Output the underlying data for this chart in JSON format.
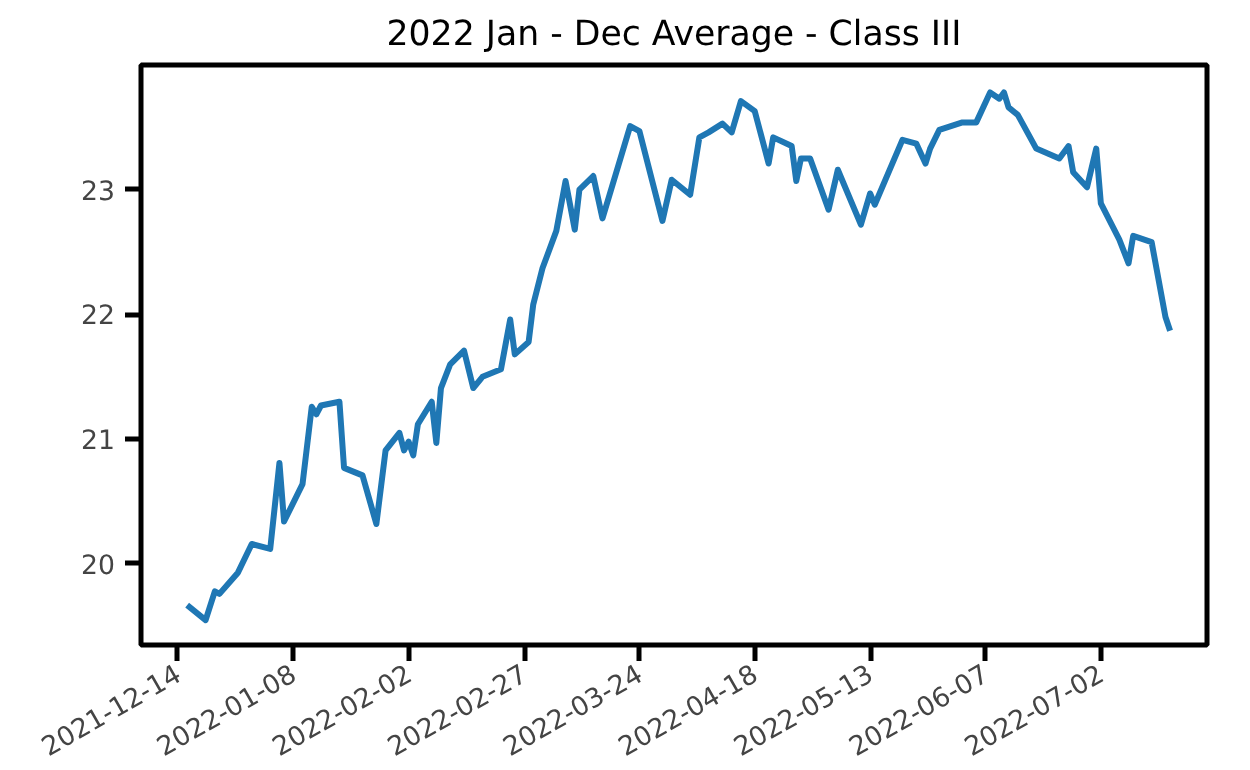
{
  "chart_data": {
    "type": "line",
    "title": "2022 Jan - Dec Average - Class III",
    "grid": false,
    "xlim": [
      "2021-12-06",
      "2022-07-25"
    ],
    "ylim": [
      19.35,
      24.0
    ],
    "xticks": [
      "2021-12-14",
      "2022-01-08",
      "2022-02-02",
      "2022-02-27",
      "2022-03-24",
      "2022-04-18",
      "2022-05-13",
      "2022-06-07",
      "2022-07-02"
    ],
    "yticks": [
      20,
      21,
      22,
      23
    ],
    "x": [
      "2021-12-16",
      "2021-12-20",
      "2021-12-22",
      "2021-12-23",
      "2021-12-27",
      "2021-12-30",
      "2022-01-03",
      "2022-01-05",
      "2022-01-06",
      "2022-01-10",
      "2022-01-12",
      "2022-01-13",
      "2022-01-14",
      "2022-01-18",
      "2022-01-19",
      "2022-01-23",
      "2022-01-26",
      "2022-01-28",
      "2022-01-31",
      "2022-02-01",
      "2022-02-02",
      "2022-02-03",
      "2022-02-04",
      "2022-02-07",
      "2022-02-08",
      "2022-02-09",
      "2022-02-11",
      "2022-02-14",
      "2022-02-16",
      "2022-02-18",
      "2022-02-22",
      "2022-02-24",
      "2022-02-25",
      "2022-02-28",
      "2022-03-01",
      "2022-03-03",
      "2022-03-06",
      "2022-03-08",
      "2022-03-10",
      "2022-03-11",
      "2022-03-14",
      "2022-03-16",
      "2022-03-22",
      "2022-03-24",
      "2022-03-29",
      "2022-03-31",
      "2022-04-04",
      "2022-04-06",
      "2022-04-08",
      "2022-04-11",
      "2022-04-13",
      "2022-04-15",
      "2022-04-18",
      "2022-04-21",
      "2022-04-22",
      "2022-04-26",
      "2022-04-27",
      "2022-04-28",
      "2022-04-30",
      "2022-05-04",
      "2022-05-06",
      "2022-05-11",
      "2022-05-13",
      "2022-05-14",
      "2022-05-20",
      "2022-05-23",
      "2022-05-25",
      "2022-05-26",
      "2022-05-28",
      "2022-06-02",
      "2022-06-05",
      "2022-06-08",
      "2022-06-10",
      "2022-06-11",
      "2022-06-12",
      "2022-06-14",
      "2022-06-18",
      "2022-06-23",
      "2022-06-25",
      "2022-06-26",
      "2022-06-29",
      "2022-07-01",
      "2022-07-02",
      "2022-07-06",
      "2022-07-08",
      "2022-07-09",
      "2022-07-13",
      "2022-07-16",
      "2022-07-17"
    ],
    "series": [
      {
        "color": "#1f77b4",
        "values": [
          19.67,
          19.55,
          19.78,
          19.76,
          19.93,
          20.16,
          20.12,
          20.81,
          20.34,
          20.64,
          21.26,
          21.2,
          21.27,
          21.3,
          20.77,
          20.71,
          20.32,
          20.91,
          21.05,
          20.91,
          20.98,
          20.87,
          21.12,
          21.3,
          20.97,
          21.41,
          21.6,
          21.71,
          21.41,
          21.5,
          21.56,
          21.96,
          21.68,
          21.78,
          22.08,
          22.37,
          22.67,
          23.07,
          22.68,
          23.0,
          23.11,
          22.77,
          23.51,
          23.47,
          22.75,
          23.08,
          22.96,
          23.42,
          23.46,
          23.53,
          23.46,
          23.71,
          23.63,
          23.21,
          23.42,
          23.35,
          23.07,
          23.25,
          23.25,
          22.84,
          23.16,
          22.72,
          22.97,
          22.88,
          23.4,
          23.37,
          23.21,
          23.33,
          23.48,
          23.54,
          23.54,
          23.78,
          23.73,
          23.78,
          23.66,
          23.6,
          23.33,
          23.25,
          23.35,
          23.14,
          23.02,
          23.33,
          22.89,
          22.6,
          22.41,
          22.63,
          22.58,
          21.98,
          21.87
        ]
      }
    ]
  }
}
